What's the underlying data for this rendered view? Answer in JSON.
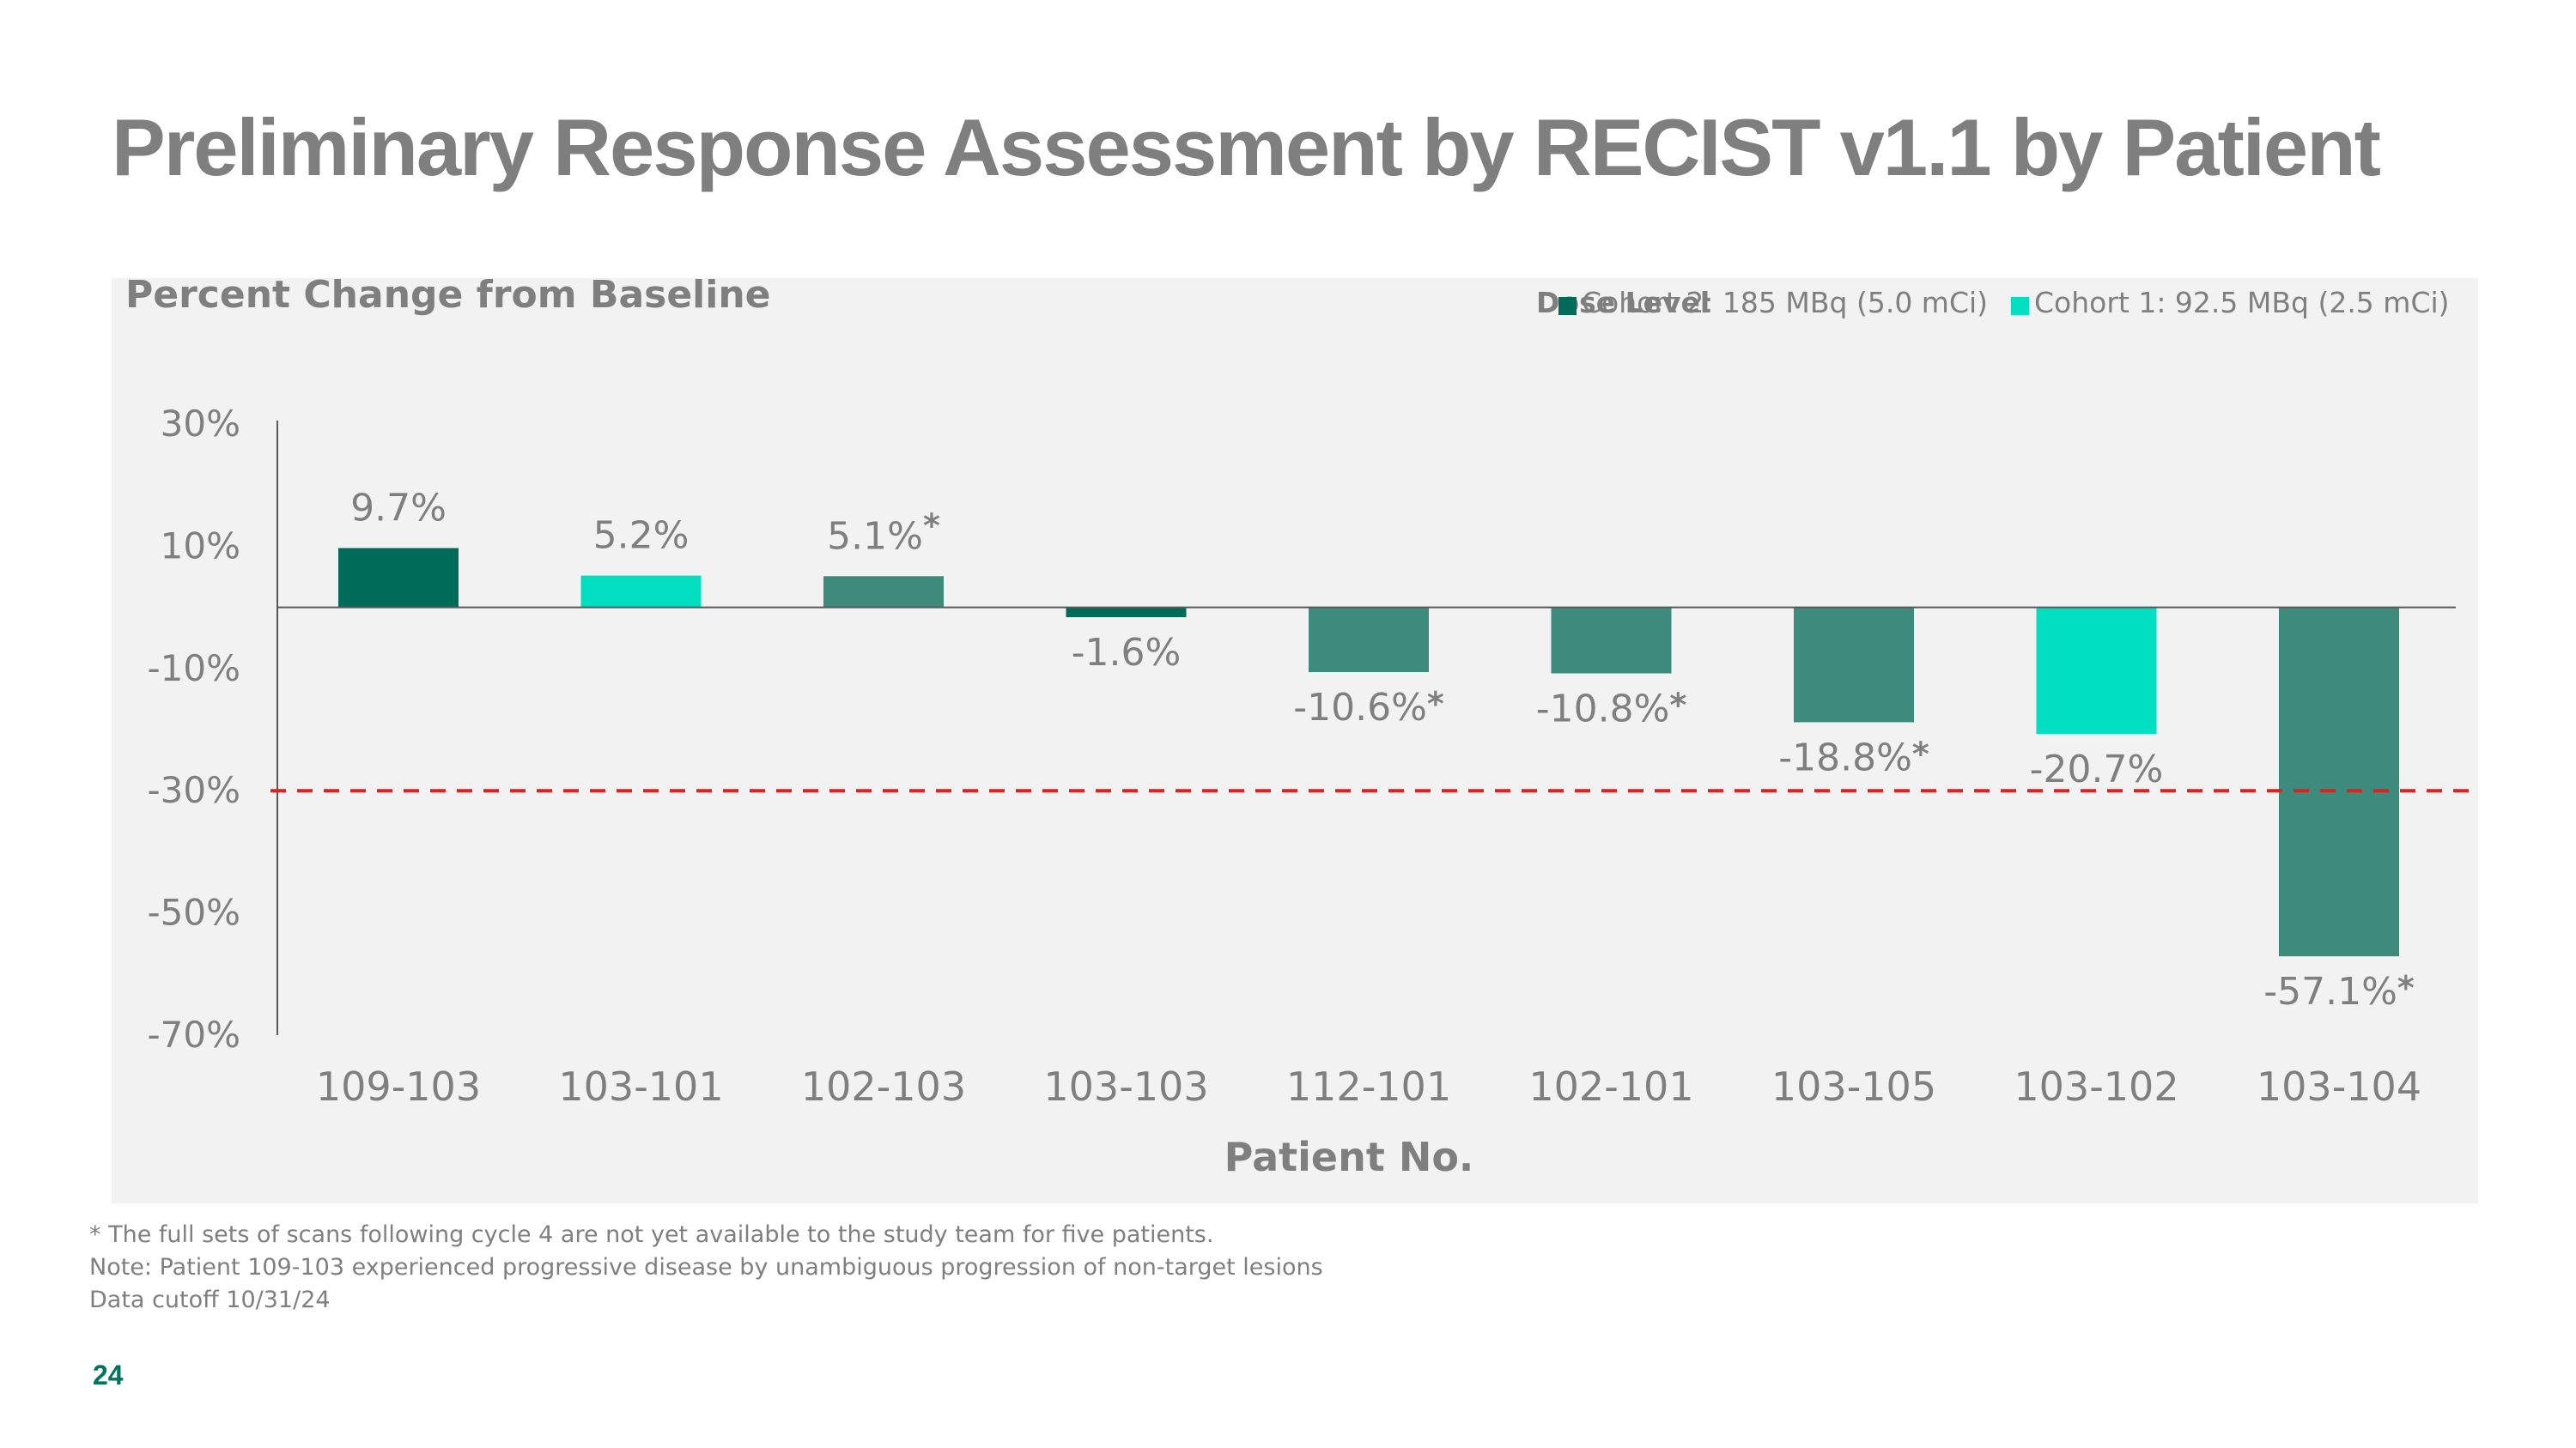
{
  "page": {
    "title": "Preliminary Response Assessment by RECIST v1.1 by Patient",
    "page_number": "24",
    "footnotes": [
      "* The full sets of scans following cycle 4 are not yet available to the study team for five patients.",
      "Note: Patient 109-103 experienced progressive disease by unambiguous progression of non-target lesions",
      "Data cutoff 10/31/24"
    ]
  },
  "chart_data": {
    "type": "bar",
    "title": "",
    "ylabel": "Percent Change from Baseline",
    "xlabel": "Patient No.",
    "ylim": [
      -70,
      30
    ],
    "y_ticks": [
      "30%",
      "10%",
      "-10%",
      "-30%",
      "-50%",
      "-70%"
    ],
    "y_tick_values": [
      30,
      10,
      -10,
      -30,
      -50,
      -70
    ],
    "legend_title": "Dose Level",
    "legend_position": "top-right",
    "legend": [
      {
        "label": "Cohort 2: 185 MBq (5.0 mCi)",
        "color": "#006b58"
      },
      {
        "label": "Cohort 1: 92.5 MBq (2.5  mCi)",
        "color": "#00e0c0"
      }
    ],
    "categories": [
      "109-103",
      "103-101",
      "102-103",
      "103-103",
      "112-101",
      "102-101",
      "103-105",
      "103-102",
      "103-104"
    ],
    "values": [
      9.7,
      5.2,
      5.1,
      -1.6,
      -10.6,
      -10.8,
      -18.8,
      -20.7,
      -57.1
    ],
    "labels": [
      "9.7%",
      "5.2%",
      "5.1%",
      "-1.6%",
      "-10.6%",
      "-10.8%",
      "-18.8%",
      "-20.7%",
      "-57.1%"
    ],
    "asterisk": [
      false,
      false,
      true,
      false,
      true,
      true,
      true,
      false,
      true
    ],
    "asterisk_text": "*",
    "colors": [
      "#006b58",
      "#00e0c0",
      "#3d8b7d",
      "#006b58",
      "#3d8b7d",
      "#3d8b7d",
      "#3d8b7d",
      "#00e0c0",
      "#3d8b7d"
    ],
    "threshold": {
      "value": -30,
      "color": "#e02020",
      "style": "dashed"
    },
    "grid": false
  }
}
